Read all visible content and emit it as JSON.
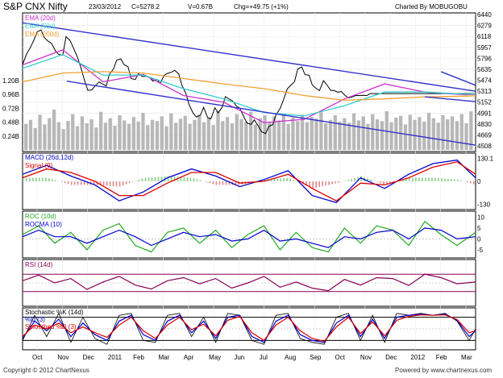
{
  "header": {
    "title": "S&P CNX Nifty",
    "date": "23/03/2012",
    "close": "C=5278.2",
    "volume": "V=0.67B",
    "change": "Chg=+49.75 (+1%)",
    "credit": "Charted By MOBUGOBU"
  },
  "footer": {
    "copyright": "Copyright © 2012 ChartNexus",
    "website": "Powered by www.chartnexus.com"
  },
  "colors": {
    "price": "#000000",
    "ema20": "#cc33cc",
    "ema50": "#33cccc",
    "ema200": "#f0a030",
    "channel": "#3333cc",
    "macd": "#0000cc",
    "signal": "#dd0000",
    "roc": "#22aa22",
    "rocma": "#0000cc",
    "rsi": "#880055",
    "stoch_k": "#000000",
    "stoch_d": "#0000cc",
    "stoch_smooth": "#dd0000",
    "volume_bars": "#b8b8b8"
  },
  "chart_data": [
    {
      "panel": "price",
      "type": "line",
      "legend": [
        "EMA (20d)",
        "EMA (50d)",
        "EMA (200d)"
      ],
      "x_ticks": [
        "Oct",
        "Nov",
        "Dec",
        "2011",
        "Feb",
        "Mar",
        "Apr",
        "May",
        "Jun",
        "Jul",
        "Aug",
        "Sep",
        "Oct",
        "Nov",
        "Dec",
        "2012",
        "Feb",
        "Mar"
      ],
      "y_ticks": [
        "6440",
        "6279",
        "6118",
        "5957",
        "5796",
        "5635",
        "5474",
        "5313",
        "5152",
        "4991",
        "4830",
        "4669",
        "4508"
      ],
      "ylim": [
        4450,
        6440
      ],
      "series": [
        {
          "name": "Nifty",
          "x": [
            0,
            5,
            10,
            14,
            18,
            23,
            27,
            32,
            36,
            41,
            45,
            50,
            54,
            59,
            63,
            68,
            72,
            77,
            81,
            86,
            90,
            95,
            99,
            104,
            108,
            113,
            117,
            122,
            126,
            131,
            135,
            140,
            144,
            149,
            153,
            158,
            162,
            167,
            171,
            176,
            180,
            185,
            189,
            194,
            198,
            203,
            207,
            212,
            216,
            221,
            225,
            230,
            234,
            239,
            243,
            248,
            252,
            257,
            261,
            266,
            270,
            275,
            279,
            284,
            288,
            293,
            297,
            302,
            306,
            311,
            315,
            320,
            324,
            329,
            333,
            338,
            342,
            347,
            351,
            356,
            360,
            365,
            369,
            374,
            378,
            383,
            387,
            392,
            396,
            401,
            405,
            410,
            414,
            419,
            423,
            428,
            432,
            437,
            441,
            446,
            450,
            455,
            459,
            464,
            468,
            473,
            477,
            482,
            486,
            491,
            495,
            500,
            504,
            509,
            513,
            518,
            522,
            527,
            531,
            536,
            540,
            545,
            549,
            554,
            558,
            563
          ],
          "values": [
            5703,
            5859,
            5964,
            6062,
            6186,
            6211,
            6101,
            6046,
            6017,
            5902,
            5851,
            5844,
            6114,
            6058,
            5953,
            5817,
            5677,
            5469,
            5327,
            5331,
            5387,
            5449,
            5423,
            5391,
            5563,
            5640,
            5770,
            5788,
            5704,
            5672,
            5498,
            5485,
            5569,
            5528,
            5534,
            5512,
            5462,
            5487,
            5426,
            5548,
            5574,
            5592,
            5620,
            5567,
            5402,
            5278,
            5116,
            4989,
            4934,
            4961,
            5076,
            4925,
            4906,
            5070,
            4994,
            5077,
            5233,
            5196,
            5170,
            5091,
            5065,
            4935,
            4845,
            4825,
            4891,
            4800,
            4717,
            4690,
            4796,
            4822,
            4966,
            5056,
            5177,
            5347,
            5397,
            5453,
            5640,
            5669,
            5555,
            5549,
            5405,
            5351,
            5322,
            5467,
            5409,
            5327,
            5323,
            5297,
            5309,
            5248,
            5215,
            5230,
            5250,
            5249,
            5253,
            5250,
            5278,
            5278,
            5278,
            5278,
            5278,
            5278,
            5278,
            5278,
            5278,
            5278,
            5278,
            5278,
            5278,
            5278,
            5278,
            5278,
            5278,
            5278,
            5278,
            5278,
            5278,
            5278,
            5278,
            5278,
            5278,
            5278,
            5278,
            5278,
            5278,
            5278
          ]
        },
        {
          "name": "EMA (20d)",
          "x": [
            0,
            50,
            100,
            150,
            200,
            250,
            300,
            350,
            400,
            450,
            500,
            550,
            563
          ],
          "values": [
            5700,
            5920,
            5450,
            5560,
            5250,
            5150,
            4850,
            4900,
            5200,
            5420,
            5300,
            5260,
            5270
          ]
        },
        {
          "name": "EMA (50d)",
          "x": [
            0,
            50,
            100,
            150,
            200,
            250,
            300,
            350,
            400,
            450,
            500,
            550,
            563
          ],
          "values": [
            5650,
            5850,
            5550,
            5550,
            5350,
            5200,
            5000,
            4950,
            5100,
            5300,
            5300,
            5270,
            5275
          ]
        },
        {
          "name": "EMA (200d)",
          "x": [
            0,
            50,
            100,
            150,
            200,
            250,
            300,
            350,
            400,
            450,
            500,
            550,
            563
          ],
          "values": [
            5450,
            5580,
            5600,
            5580,
            5500,
            5420,
            5350,
            5250,
            5180,
            5200,
            5230,
            5240,
            5245
          ]
        }
      ],
      "trendlines": [
        {
          "from": [
            0,
            6318
          ],
          "to": [
            563,
            5313
          ]
        },
        {
          "from": [
            55,
            5460
          ],
          "to": [
            563,
            4520
          ]
        },
        {
          "from": [
            520,
            5600
          ],
          "to": [
            563,
            5400
          ]
        },
        {
          "from": [
            500,
            5230
          ],
          "to": [
            563,
            5160
          ]
        }
      ]
    },
    {
      "panel": "volume",
      "type": "bar",
      "y_ticks": [
        "1.20B",
        "0.96B",
        "0.72B",
        "0.48B",
        "0.24B"
      ],
      "ylim": [
        0,
        1.2
      ],
      "values": [
        0.45,
        0.52,
        0.38,
        0.61,
        0.44,
        0.55,
        0.7,
        0.48,
        0.36,
        0.5,
        0.62,
        0.41,
        0.58,
        0.46,
        0.53,
        0.39,
        0.66,
        0.47,
        0.55,
        0.42,
        0.6,
        0.51,
        0.45,
        0.57,
        0.49,
        0.64,
        0.43,
        0.52,
        0.5,
        0.58,
        0.41,
        0.63,
        0.47,
        0.54,
        0.59,
        0.45,
        0.52,
        0.61,
        0.48,
        0.56,
        0.43,
        0.68,
        0.5,
        0.57,
        0.46,
        0.62,
        0.53,
        0.49,
        0.66,
        0.44,
        0.55,
        0.6,
        0.47,
        0.58,
        0.51,
        0.63,
        0.45,
        0.56,
        0.5,
        0.61,
        0.48,
        0.57,
        0.54,
        0.65,
        0.46,
        0.52,
        0.6,
        0.49,
        0.55,
        0.47,
        0.63,
        0.51,
        0.58,
        0.45,
        0.62,
        0.53,
        0.5,
        0.67,
        0.48,
        0.56,
        0.59,
        0.44,
        0.61,
        0.52,
        0.57,
        0.49,
        0.64,
        0.55,
        0.47,
        0.6,
        0.53,
        0.58,
        0.5,
        0.62,
        0.46,
        0.67
      ]
    },
    {
      "panel": "macd",
      "type": "line",
      "legend": [
        "MACD (26d,12d)",
        "Signal (9)"
      ],
      "y_ticks": [
        "130.1",
        "0",
        "-130"
      ],
      "ylim": [
        -150,
        150
      ],
      "series": [
        {
          "name": "MACD (26d,12d)",
          "x": [
            0,
            30,
            60,
            90,
            120,
            150,
            180,
            210,
            240,
            270,
            300,
            330,
            360,
            390,
            420,
            450,
            480,
            510,
            540,
            563
          ],
          "values": [
            40,
            90,
            30,
            -20,
            -110,
            -60,
            20,
            70,
            30,
            -30,
            10,
            60,
            -80,
            -120,
            20,
            -40,
            40,
            100,
            120,
            20
          ]
        },
        {
          "name": "Signal (9)",
          "x": [
            0,
            30,
            60,
            90,
            120,
            150,
            180,
            210,
            240,
            270,
            300,
            330,
            360,
            390,
            420,
            450,
            480,
            510,
            540,
            563
          ],
          "values": [
            20,
            70,
            50,
            0,
            -80,
            -80,
            -10,
            50,
            50,
            -10,
            0,
            40,
            -40,
            -110,
            -10,
            -20,
            20,
            80,
            110,
            40
          ]
        }
      ]
    },
    {
      "panel": "roc",
      "type": "line",
      "legend": [
        "ROC (10d)",
        "ROCMA (10)"
      ],
      "y_ticks": [
        "10",
        "5",
        "0",
        "-5"
      ],
      "ylim": [
        -8,
        12
      ],
      "series": [
        {
          "name": "ROC (10d)",
          "x": [
            0,
            20,
            40,
            60,
            80,
            100,
            120,
            140,
            160,
            180,
            200,
            220,
            240,
            260,
            280,
            300,
            320,
            340,
            360,
            380,
            400,
            420,
            440,
            460,
            480,
            500,
            520,
            540,
            563
          ],
          "values": [
            2,
            6,
            -2,
            3,
            -5,
            4,
            7,
            -3,
            -6,
            3,
            5,
            -2,
            4,
            -4,
            2,
            6,
            -5,
            3,
            -4,
            -6,
            5,
            -2,
            6,
            4,
            -3,
            8,
            2,
            -3,
            3
          ]
        },
        {
          "name": "ROCMA (10)",
          "x": [
            0,
            20,
            40,
            60,
            80,
            100,
            120,
            140,
            160,
            180,
            200,
            220,
            240,
            260,
            280,
            300,
            320,
            340,
            360,
            380,
            400,
            420,
            440,
            460,
            480,
            500,
            520,
            540,
            563
          ],
          "values": [
            1,
            4,
            1,
            1,
            -2,
            1,
            4,
            1,
            -3,
            0,
            3,
            1,
            2,
            -1,
            0,
            4,
            -1,
            0,
            -2,
            -4,
            1,
            0,
            3,
            4,
            0,
            5,
            4,
            0,
            1
          ]
        }
      ]
    },
    {
      "panel": "rsi",
      "type": "line",
      "legend": [
        "RSI (14d)"
      ],
      "ylim": [
        0,
        100
      ],
      "series": [
        {
          "name": "RSI (14d)",
          "x": [
            0,
            20,
            40,
            60,
            80,
            100,
            120,
            140,
            160,
            180,
            200,
            220,
            240,
            260,
            280,
            300,
            320,
            340,
            360,
            380,
            400,
            420,
            440,
            460,
            480,
            500,
            520,
            540,
            563
          ],
          "values": [
            55,
            68,
            50,
            60,
            35,
            52,
            65,
            45,
            36,
            55,
            62,
            48,
            60,
            38,
            50,
            65,
            40,
            52,
            38,
            32,
            58,
            45,
            62,
            60,
            44,
            70,
            62,
            48,
            52
          ]
        }
      ]
    },
    {
      "panel": "stochastic",
      "type": "line",
      "legend": [
        "Stochastic %K (14d)",
        "%D (3)",
        "Smoothed %D (3)"
      ],
      "ylim": [
        0,
        100
      ],
      "series": [
        {
          "name": "Stochastic %K (14d)",
          "x": [
            0,
            15,
            30,
            45,
            60,
            75,
            90,
            105,
            120,
            135,
            150,
            165,
            180,
            195,
            210,
            225,
            240,
            255,
            270,
            285,
            300,
            315,
            330,
            345,
            360,
            375,
            390,
            405,
            420,
            435,
            450,
            465,
            480,
            495,
            510,
            525,
            540,
            555,
            563
          ],
          "values": [
            20,
            85,
            30,
            90,
            15,
            80,
            25,
            10,
            85,
            90,
            20,
            15,
            85,
            90,
            30,
            80,
            15,
            90,
            85,
            20,
            10,
            85,
            90,
            25,
            15,
            10,
            80,
            90,
            20,
            85,
            15,
            90,
            85,
            90,
            85,
            90,
            70,
            20,
            50
          ]
        },
        {
          "name": "%D (3)",
          "x": [
            0,
            15,
            30,
            45,
            60,
            75,
            90,
            105,
            120,
            135,
            150,
            165,
            180,
            195,
            210,
            225,
            240,
            255,
            270,
            285,
            300,
            315,
            330,
            345,
            360,
            375,
            390,
            405,
            420,
            435,
            450,
            465,
            480,
            495,
            510,
            525,
            540,
            555,
            563
          ],
          "values": [
            25,
            70,
            45,
            75,
            30,
            65,
            35,
            20,
            70,
            85,
            35,
            20,
            70,
            85,
            40,
            70,
            25,
            80,
            85,
            30,
            15,
            70,
            85,
            35,
            20,
            15,
            65,
            85,
            30,
            75,
            25,
            80,
            85,
            88,
            85,
            88,
            72,
            30,
            45
          ]
        },
        {
          "name": "Smoothed %D (3)",
          "x": [
            0,
            15,
            30,
            45,
            60,
            75,
            90,
            105,
            120,
            135,
            150,
            165,
            180,
            195,
            210,
            225,
            240,
            255,
            270,
            285,
            300,
            315,
            330,
            345,
            360,
            375,
            390,
            405,
            420,
            435,
            450,
            465,
            480,
            495,
            510,
            525,
            540,
            555,
            563
          ],
          "values": [
            30,
            60,
            50,
            65,
            40,
            55,
            40,
            28,
            60,
            80,
            45,
            25,
            60,
            80,
            48,
            62,
            32,
            72,
            82,
            40,
            20,
            60,
            80,
            45,
            25,
            18,
            55,
            80,
            38,
            68,
            32,
            72,
            82,
            86,
            85,
            86,
            74,
            40,
            45
          ]
        }
      ]
    }
  ]
}
